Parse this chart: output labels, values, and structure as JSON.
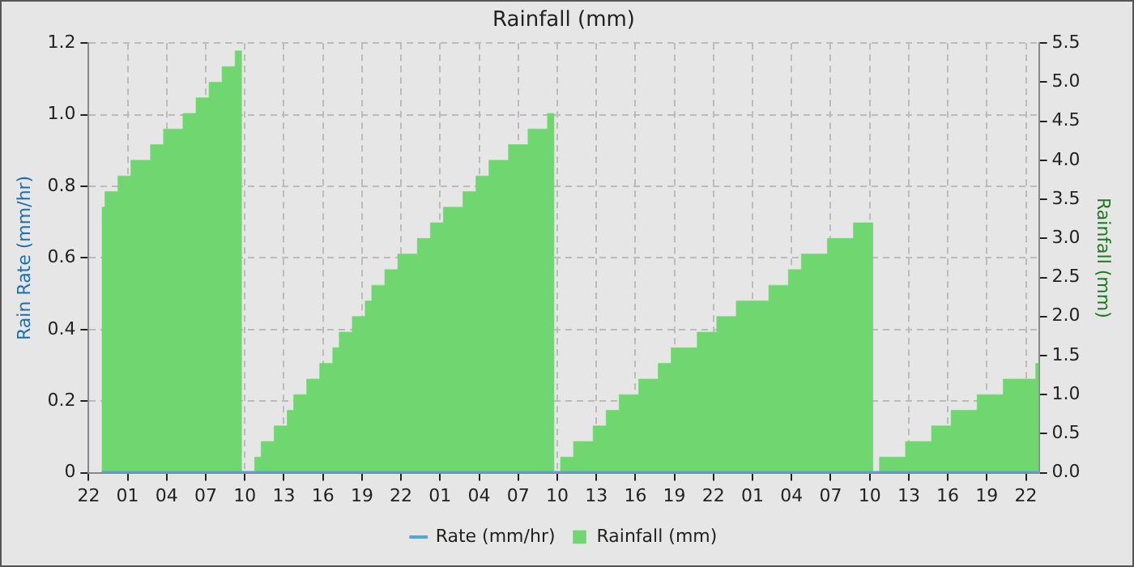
{
  "chart_data": {
    "type": "step",
    "title": "Rainfall (mm)",
    "ylabel": "Rain Rate (mm/hr)",
    "y2label": "Rainfall (mm)",
    "categories": [
      "22",
      null,
      null,
      null,
      null,
      null,
      "01",
      null,
      null,
      null,
      null,
      null,
      "04",
      null,
      null,
      null,
      null,
      null,
      "07",
      null,
      null,
      null,
      null,
      null,
      "10",
      null,
      null,
      null,
      null,
      null,
      "13",
      null,
      null,
      null,
      null,
      null,
      "16",
      null,
      null,
      null,
      null,
      null,
      "19",
      null,
      null,
      null,
      null,
      null,
      "22",
      null,
      null,
      null,
      null,
      null,
      "01",
      null,
      null,
      null,
      null,
      null,
      "04",
      null,
      null,
      null,
      null,
      null,
      "07",
      null,
      null,
      null,
      null,
      null,
      "10",
      null,
      null,
      null,
      null,
      null,
      "13",
      null,
      null,
      null,
      null,
      null,
      "16",
      null,
      null,
      null,
      null,
      null,
      "19",
      null,
      null,
      null,
      null,
      null,
      "22",
      null,
      null,
      null,
      null,
      null,
      "01",
      null,
      null,
      null,
      null,
      null,
      "04",
      null,
      null,
      null,
      null,
      null,
      "07",
      null,
      null,
      null,
      null,
      null,
      "10",
      null,
      null,
      null,
      null,
      null,
      "13",
      null,
      null,
      null,
      null,
      null,
      "16",
      null,
      null,
      null,
      null,
      null,
      "19",
      null,
      null,
      null,
      null,
      null,
      "22",
      null,
      null
    ],
    "ylim": [
      0,
      1.2
    ],
    "yticks": [
      0,
      0.2,
      0.4,
      0.6,
      0.8,
      {
        "value": 1.0,
        "label": "1.0"
      },
      1.2
    ],
    "y2lim": [
      0,
      5.5
    ],
    "y2ticks": [
      {
        "value": 0,
        "label": "0.0"
      },
      0.5,
      {
        "value": 1,
        "label": "1.0"
      },
      1.5,
      {
        "value": 2,
        "label": "2.0"
      },
      2.5,
      {
        "value": 3,
        "label": "3.0"
      },
      3.5,
      {
        "value": 4,
        "label": "4.0"
      },
      4.5,
      {
        "value": 5,
        "label": "5.0"
      },
      5.5
    ],
    "grid": true,
    "legend": "bottom",
    "series": [
      {
        "name": "Rate (mm/hr)",
        "type": "line",
        "color": "#4da6e0",
        "axis": "y",
        "values": [
          null,
          null,
          0,
          0,
          0,
          0,
          0,
          0,
          0,
          0,
          0,
          0,
          0,
          0,
          0,
          0,
          0,
          0,
          0,
          0,
          0,
          0,
          0,
          0,
          0,
          0,
          0,
          0,
          0,
          0,
          0,
          0,
          0,
          0,
          0,
          0,
          0,
          0,
          0,
          0,
          0,
          0,
          0,
          0,
          0,
          0,
          0,
          0,
          0,
          0,
          0,
          0,
          0,
          0,
          0,
          0,
          0,
          0,
          0,
          0,
          0,
          0,
          0,
          0,
          0,
          0,
          0,
          0,
          0,
          0,
          0,
          0,
          0,
          0,
          0,
          0,
          0,
          0,
          0,
          0,
          0,
          0,
          0,
          0,
          0,
          0,
          0,
          0,
          0,
          0,
          0,
          0,
          0,
          0,
          0,
          0,
          0,
          0,
          0,
          0,
          0,
          0,
          0,
          0,
          0,
          0,
          0,
          0,
          0,
          0,
          0,
          0,
          0,
          0,
          0,
          0,
          0,
          0,
          0,
          0,
          0,
          0,
          0,
          0,
          0,
          0,
          0,
          0,
          0,
          0,
          0,
          0,
          0,
          0,
          0,
          0,
          0,
          0,
          0,
          0,
          0,
          0,
          0,
          0,
          0,
          0,
          0
        ]
      },
      {
        "name": "Rainfall (mm)",
        "type": "area",
        "color": "#70d770",
        "axis": "y2",
        "values": [
          null,
          null,
          3.4,
          3.6,
          3.6,
          3.8,
          3.8,
          4.0,
          4.0,
          4.0,
          4.2,
          4.2,
          4.4,
          4.4,
          4.4,
          4.6,
          4.6,
          4.8,
          4.8,
          5.0,
          5.0,
          5.2,
          5.2,
          5.4,
          0,
          0,
          0.2,
          0.4,
          0.4,
          0.6,
          0.6,
          0.8,
          1.0,
          1.0,
          1.2,
          1.2,
          1.4,
          1.4,
          1.6,
          1.8,
          1.8,
          2.0,
          2.0,
          2.2,
          2.4,
          2.4,
          2.6,
          2.6,
          2.8,
          2.8,
          2.8,
          3.0,
          3.0,
          3.2,
          3.2,
          3.4,
          3.4,
          3.4,
          3.6,
          3.6,
          3.8,
          3.8,
          4.0,
          4.0,
          4.0,
          4.2,
          4.2,
          4.2,
          4.4,
          4.4,
          4.4,
          4.6,
          0,
          0.2,
          0.2,
          0.4,
          0.4,
          0.4,
          0.6,
          0.6,
          0.8,
          0.8,
          1.0,
          1.0,
          1.0,
          1.2,
          1.2,
          1.2,
          1.4,
          1.4,
          1.6,
          1.6,
          1.6,
          1.6,
          1.8,
          1.8,
          1.8,
          2.0,
          2.0,
          2.0,
          2.2,
          2.2,
          2.2,
          2.2,
          2.2,
          2.4,
          2.4,
          2.4,
          2.6,
          2.6,
          2.8,
          2.8,
          2.8,
          2.8,
          3.0,
          3.0,
          3.0,
          3.0,
          3.2,
          3.2,
          3.2,
          0,
          0.2,
          0.2,
          0.2,
          0.2,
          0.4,
          0.4,
          0.4,
          0.4,
          0.6,
          0.6,
          0.6,
          0.8,
          0.8,
          0.8,
          0.8,
          1.0,
          1.0,
          1.0,
          1.0,
          1.2,
          1.2,
          1.2,
          1.2,
          1.2,
          1.4
        ]
      }
    ]
  }
}
